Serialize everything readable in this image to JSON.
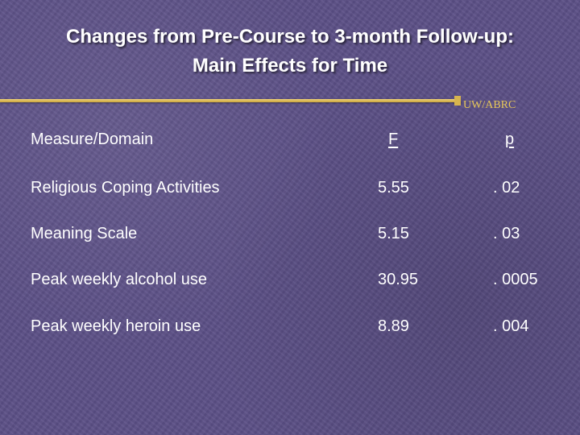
{
  "slide": {
    "title_line1": "Changes from Pre-Course to 3-month Follow-up:",
    "title_line2": "Main Effects for Time",
    "credit": "UW/ABRC",
    "accent_color": "#e8c85a"
  },
  "table": {
    "headers": {
      "measure": "Measure/Domain",
      "f": "F",
      "p": "p"
    },
    "rows": [
      {
        "measure": "Religious Coping Activities",
        "f": "5.55",
        "p": ". 02"
      },
      {
        "measure": "Meaning Scale",
        "f": "5.15",
        "p": ". 03"
      },
      {
        "measure": "Peak weekly alcohol use",
        "f": "30.95",
        "p": ". 0005"
      },
      {
        "measure": "Peak weekly heroin use",
        "f": "8.89",
        "p": ". 004"
      }
    ]
  }
}
